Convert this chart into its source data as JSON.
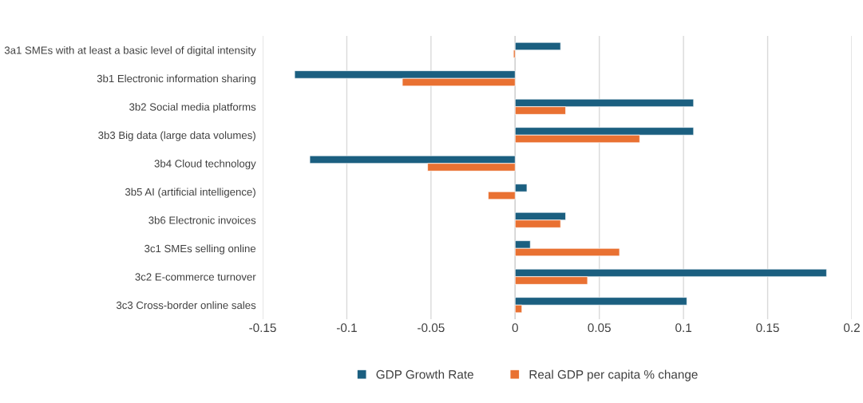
{
  "chart_data": {
    "type": "bar",
    "orientation": "horizontal",
    "categories": [
      "3a1 SMEs with at least a basic level of digital intensity",
      "3b1 Electronic information sharing",
      "3b2 Social media platforms",
      "3b3 Big data (large data volumes)",
      "3b4 Cloud technology",
      "3b5 AI (artificial intelligence)",
      "3b6 Electronic invoices",
      "3c1 SMEs selling online",
      "3c2 E-commerce turnover",
      "3c3 Cross-border online sales"
    ],
    "series": [
      {
        "name": "GDP Growth Rate",
        "color": "#1b5f80",
        "values": [
          0.027,
          -0.131,
          0.106,
          0.106,
          -0.122,
          0.007,
          0.03,
          0.009,
          0.185,
          0.102
        ]
      },
      {
        "name": "Real GDP per capita % change",
        "color": "#e97132",
        "values": [
          -0.001,
          -0.067,
          0.03,
          0.074,
          -0.052,
          -0.016,
          0.027,
          0.062,
          0.043,
          0.004
        ]
      }
    ],
    "xlim": [
      -0.15,
      0.2
    ],
    "xticks": [
      -0.15,
      -0.1,
      -0.05,
      0,
      0.05,
      0.1,
      0.15,
      0.2
    ],
    "grid": "x",
    "legend": "bottom"
  }
}
